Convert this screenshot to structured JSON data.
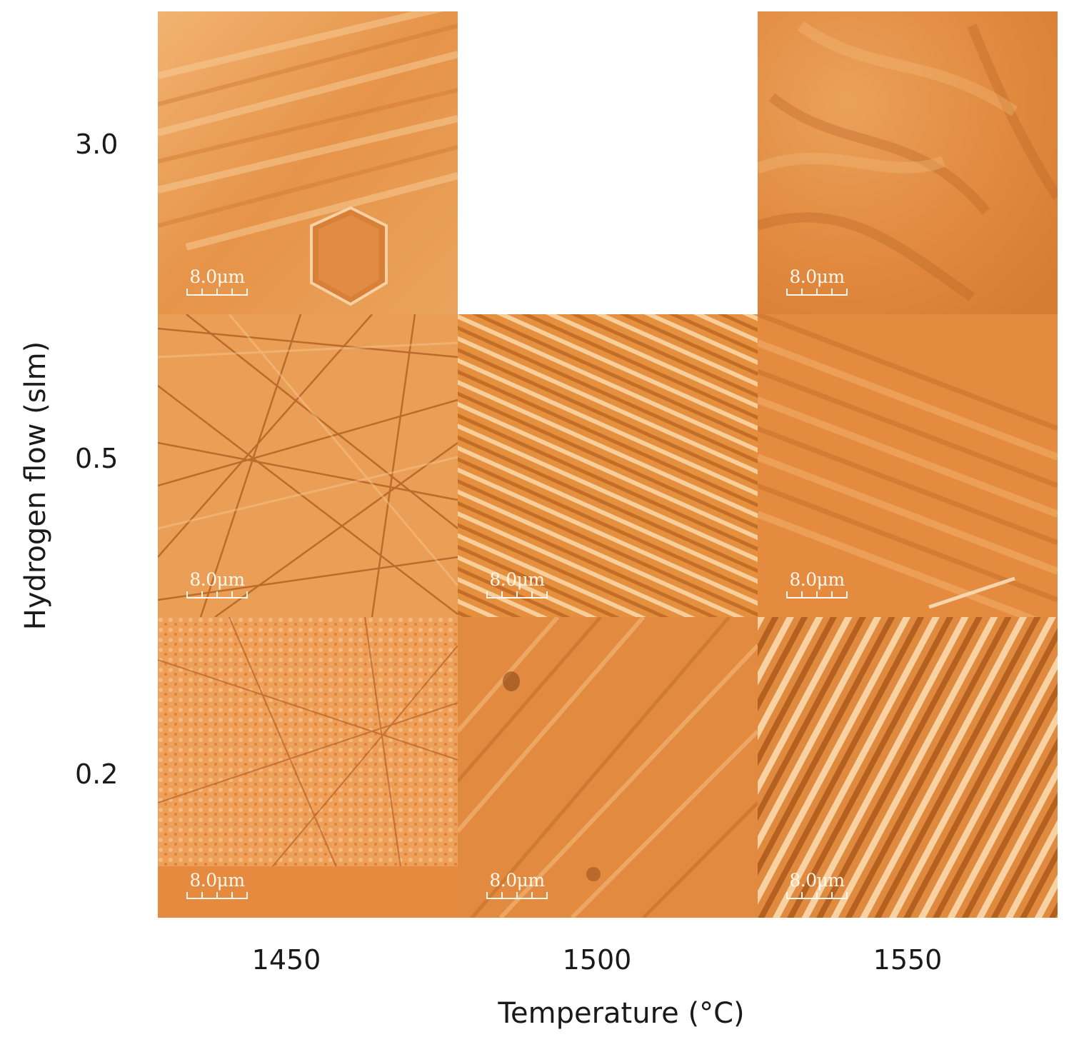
{
  "figure": {
    "x_axis_label": "Temperature (°C)",
    "y_axis_label": "Hydrogen flow (slm)",
    "temperatures": [
      "1450",
      "1500",
      "1550"
    ],
    "hydrogen_flows": [
      "3.0",
      "0.5",
      "0.2"
    ],
    "scale_bar_label": "8.0μm",
    "colors": {
      "base": "#e38a3f",
      "light": "#f6c58a",
      "dark": "#a85a1c",
      "background": "#ffffff"
    },
    "panels": [
      {
        "id": "3.0-1450",
        "present": true,
        "texture": "smooth-steps-with-hexagonal-pit"
      },
      {
        "id": "3.0-1500",
        "present": false
      },
      {
        "id": "3.0-1550",
        "present": true,
        "texture": "smooth-wavy"
      },
      {
        "id": "0.5-1450",
        "present": true,
        "texture": "crosshatch-scratches"
      },
      {
        "id": "0.5-1500",
        "present": true,
        "texture": "step-bunching"
      },
      {
        "id": "0.5-1550",
        "present": true,
        "texture": "diagonal-streaks"
      },
      {
        "id": "0.2-1450",
        "present": true,
        "texture": "fine-crosshatch"
      },
      {
        "id": "0.2-1500",
        "present": true,
        "texture": "diagonal-streaks"
      },
      {
        "id": "0.2-1550",
        "present": true,
        "texture": "coarse-step-bunching"
      }
    ]
  }
}
